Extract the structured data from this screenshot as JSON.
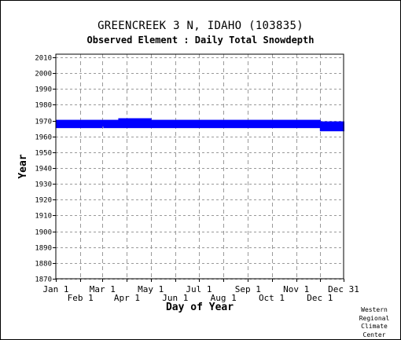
{
  "chart_data": {
    "type": "scatter",
    "title": "GREENCREEK 3 N, IDAHO   (103835)",
    "subtitle": "Observed Element : Daily Total Snowdepth",
    "xlabel": "Day of Year",
    "ylabel": "Year",
    "ylim": [
      1870,
      2012
    ],
    "xlim": [
      1,
      365
    ],
    "grid": true,
    "y_ticks": [
      1870,
      1880,
      1890,
      1900,
      1910,
      1920,
      1930,
      1940,
      1950,
      1960,
      1970,
      1980,
      1990,
      2000,
      2010
    ],
    "x_ticks_upper": [
      {
        "day": 1,
        "label": "Jan 1"
      },
      {
        "day": 60,
        "label": "Mar 1"
      },
      {
        "day": 121,
        "label": "May 1"
      },
      {
        "day": 182,
        "label": "Jul 1"
      },
      {
        "day": 244,
        "label": "Sep 1"
      },
      {
        "day": 305,
        "label": "Nov 1"
      },
      {
        "day": 365,
        "label": "Dec 31"
      }
    ],
    "x_ticks_lower": [
      {
        "day": 32,
        "label": "Feb 1"
      },
      {
        "day": 91,
        "label": "Apr 1"
      },
      {
        "day": 152,
        "label": "Jun 1"
      },
      {
        "day": 213,
        "label": "Aug 1"
      },
      {
        "day": 274,
        "label": "Oct 1"
      },
      {
        "day": 335,
        "label": "Dec 1"
      }
    ],
    "color": "#0000ff",
    "series": [
      {
        "values": [
          {
            "year": 1966,
            "start_day": 1,
            "end_day": 59
          },
          {
            "year": 1966,
            "start_day": 61,
            "end_day": 365
          },
          {
            "year": 1967,
            "start_day": 1,
            "end_day": 365
          },
          {
            "year": 1968,
            "start_day": 1,
            "end_day": 365
          },
          {
            "year": 1969,
            "start_day": 1,
            "end_day": 365
          },
          {
            "year": 1970,
            "start_day": 1,
            "end_day": 335
          },
          {
            "year": 1971,
            "start_day": 80,
            "end_day": 121
          },
          {
            "year": 1964,
            "start_day": 335,
            "end_day": 365
          },
          {
            "year": 1965,
            "start_day": 335,
            "end_day": 365
          }
        ]
      }
    ]
  },
  "credit": [
    "Western",
    "Regional",
    "Climate",
    "Center"
  ]
}
